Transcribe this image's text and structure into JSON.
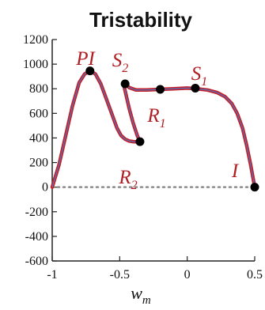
{
  "chart_data": {
    "type": "line",
    "title": "Tristability",
    "xlabel": {
      "main": "w",
      "sub": "m"
    },
    "ylabel": "",
    "xlim": [
      -1,
      0.5
    ],
    "ylim": [
      -600,
      1200
    ],
    "xticks": [
      -1,
      -0.5,
      0,
      0.5
    ],
    "xtick_labels": [
      "-1",
      "-0.5",
      "0",
      "0.5"
    ],
    "yticks": [
      -600,
      -400,
      -200,
      0,
      200,
      400,
      600,
      800,
      1000,
      1200
    ],
    "ytick_labels": [
      "-600",
      "-400",
      "-200",
      "0",
      "200",
      "400",
      "600",
      "800",
      "1000",
      "1200"
    ],
    "grid": false,
    "zero_line": {
      "y": 0,
      "style": "dotted",
      "color": "#8c8c8c"
    },
    "colors": {
      "curve_outer": "#c3202a",
      "curve_inner": "#5a6fb5",
      "points": "#000000",
      "annotation": "#b01e23",
      "axis": "#222222"
    },
    "series": [
      {
        "x": [
          -1.0,
          -0.95,
          -0.9,
          -0.85,
          -0.8,
          -0.76,
          -0.72,
          -0.68,
          -0.64,
          -0.6,
          -0.56,
          -0.52,
          -0.49,
          -0.46,
          -0.43,
          -0.4,
          -0.375,
          -0.35
        ],
        "y": [
          0,
          180,
          420,
          660,
          850,
          920,
          945,
          920,
          840,
          720,
          600,
          480,
          420,
          390,
          375,
          370,
          368,
          370
        ]
      },
      {
        "x": [
          -0.35,
          -0.37,
          -0.4,
          -0.43,
          -0.455,
          -0.47,
          -0.46,
          -0.43,
          -0.38,
          -0.3,
          -0.2,
          -0.1,
          0.0,
          0.07,
          0.15,
          0.22,
          0.28,
          0.33,
          0.37,
          0.41,
          0.44,
          0.47,
          0.49,
          0.5
        ],
        "y": [
          370,
          420,
          520,
          640,
          760,
          830,
          840,
          810,
          790,
          790,
          795,
          800,
          805,
          800,
          790,
          770,
          735,
          680,
          600,
          480,
          340,
          180,
          60,
          0
        ]
      }
    ],
    "points": [
      {
        "label": "PI",
        "x": -0.72,
        "y": 945
      },
      {
        "label": "S2",
        "x": -0.46,
        "y": 840
      },
      {
        "label": "R1",
        "x": -0.2,
        "y": 795
      },
      {
        "label": "S1",
        "x": 0.06,
        "y": 805
      },
      {
        "label": "R2",
        "x": -0.35,
        "y": 370
      },
      {
        "label": "I",
        "x": 0.5,
        "y": 0
      }
    ],
    "annotations": [
      {
        "main": "PI",
        "sub": ""
      },
      {
        "main": "S",
        "sub": "2"
      },
      {
        "main": "S",
        "sub": "1"
      },
      {
        "main": "R",
        "sub": "1"
      },
      {
        "main": "R",
        "sub": "2"
      },
      {
        "main": "I",
        "sub": ""
      }
    ]
  }
}
